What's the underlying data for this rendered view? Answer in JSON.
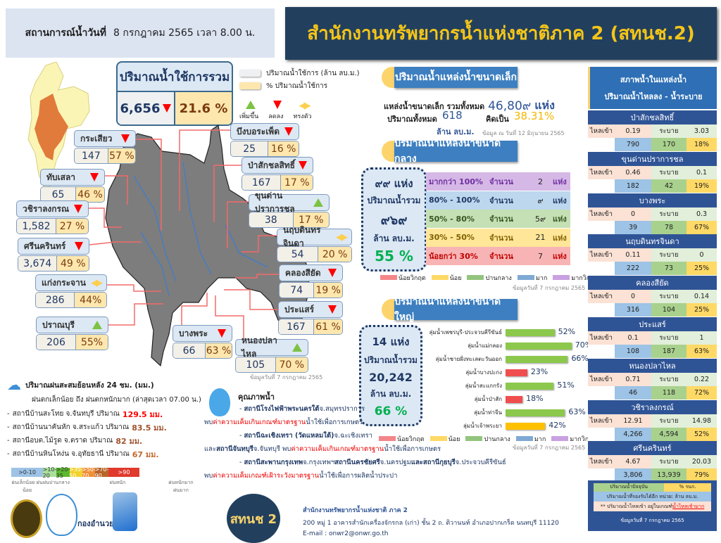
{
  "header": {
    "situation_label": "สถานการณ์น้ำวันที่",
    "situation_date": "8 กรกฎาคม 2565 เวลา 8.00 น.",
    "title": "สำนักงานทรัพยากรน้ำแห่งชาติภาค 2 (สทนช.2)"
  },
  "total": {
    "title": "ปริมาณน้ำใช้การรวม",
    "value": "6,656",
    "trend": "down",
    "percent": "21.6 %"
  },
  "legend": {
    "volume_label": "ปริมาณน้ำใช้การ (ล้าน ลบ.ม.)",
    "percent_label": "% ปริมาณน้ำใช้การ",
    "up": "เพิ่มขึ้น",
    "down": "ลดลง",
    "steady": "ทรงตัว"
  },
  "colors": {
    "volume": "#eef0f2",
    "percent": "#fde7ae",
    "up": "#7dc242",
    "down": "#ff0000",
    "steady": "#fccf4d",
    "title_bg": "#22405e",
    "title_text": "#f5c518"
  },
  "map_dams": [
    {
      "name": "กระเสียว",
      "value": "147",
      "percent": "57 %",
      "trend": "down"
    },
    {
      "name": "ทับเสลา",
      "value": "65",
      "percent": "46 %",
      "trend": "down"
    },
    {
      "name": "วชิราลงกรณ",
      "value": "1,582",
      "percent": "27 %",
      "trend": "down"
    },
    {
      "name": "ศรีนครินทร์",
      "value": "3,674",
      "percent": "49 %",
      "trend": "down"
    },
    {
      "name": "แก่งกระจาน",
      "value": "286",
      "percent": "44%",
      "trend": "steady"
    },
    {
      "name": "ปราณบุรี",
      "value": "206",
      "percent": "55%",
      "trend": "up"
    },
    {
      "name": "บึงบอระเพ็ด",
      "value": "25",
      "percent": "16 %",
      "trend": "down"
    },
    {
      "name": "ป่าสักชลสิทธิ์",
      "value": "167",
      "percent": "17 %",
      "trend": "down"
    },
    {
      "name": "ขุนด่านปราการชล",
      "value": "38",
      "percent": "17 %",
      "trend": "up"
    },
    {
      "name": "นฤบดินทรจินดา",
      "value": "54",
      "percent": "20 %",
      "trend": "steady"
    },
    {
      "name": "คลองสียัด",
      "value": "74",
      "percent": "19 %",
      "trend": "down"
    },
    {
      "name": "ประแสร์",
      "value": "167",
      "percent": "61 %",
      "trend": "down"
    },
    {
      "name": "บางพระ",
      "value": "66",
      "percent": "63 %",
      "trend": "down"
    },
    {
      "name": "หนองปลาไหล",
      "value": "105",
      "percent": "70 %",
      "trend": "up"
    }
  ],
  "map_note": "ข้อมูลวันที่ 7 กรกฎาคม 2565",
  "small": {
    "title": "ปริมาณน้ำแหล่งน้ำขนาดเล็ก",
    "count_label": "แหล่งน้ำขนาดเล็ก รวมทั้งหมด",
    "count": "46,80๙",
    "count_unit": "แห่ง",
    "volume_label": "ปริมาณทั้งหมด",
    "volume": "618",
    "volume_unit": "ล้าน ลบ.ม.",
    "pct_label": "คิดเป็น",
    "percent": "38.31%",
    "note": "ข้อมูล ณ วันที่ 12 มิถุนายน 2565"
  },
  "medium": {
    "title": "ปริมาณน้ำแหล่งน้ำขนาดกลาง",
    "count": "๙๙ แห่ง",
    "volume_label": "ปริมาณน้ำรวม",
    "volume": "๙๖๙",
    "unit": "ล้าน ลบ.ม.",
    "percent": "55 %",
    "rows": [
      {
        "range": "มากกว่า 100%",
        "label": "จำนวน",
        "count": "2",
        "unit": "แห่ง",
        "bg": "#d5b8e6",
        "color": "#7030a0"
      },
      {
        "range": "80% - 100%",
        "label": "จำนวน",
        "count": "๙",
        "unit": "แห่ง",
        "bg": "#bdd7ee",
        "color": "#1f3864"
      },
      {
        "range": "50% - 80%",
        "label": "จำนวน",
        "count": "5๙",
        "unit": "แห่ง",
        "bg": "#c5e0b4",
        "color": "#375623"
      },
      {
        "range": "30% - 50%",
        "label": "จำนวน",
        "count": "21",
        "unit": "แห่ง",
        "bg": "#ffe699",
        "color": "#806000"
      },
      {
        "range": "น้อยกว่า 30%",
        "label": "จำนวน",
        "count": "7",
        "unit": "แห่ง",
        "bg": "#f8b4b4",
        "color": "#c00000"
      }
    ],
    "note": "ข้อมูลวันที่ 7 กรกฎาคม 2565"
  },
  "status_legend": [
    {
      "label": "น้อยวิกฤต",
      "color": "#f4868a"
    },
    {
      "label": "น้อย",
      "color": "#ffd966"
    },
    {
      "label": "ปานกลาง",
      "color": "#93c47d"
    },
    {
      "label": "มาก",
      "color": "#7fa9d4"
    },
    {
      "label": "มากวิกฤต",
      "color": "#c9a0e0"
    }
  ],
  "large": {
    "title": "ปริมาณน้ำแหล่งน้ำขนาดใหญ่",
    "count": "14 แห่ง",
    "volume_label": "ปริมาณน้ำรวม",
    "volume": "20,242",
    "unit": "ล้าน ลบ.ม.",
    "percent": "66 %",
    "note": "ข้อมูลวันที่ 7 กรกฎาคม 2565"
  },
  "chart_data": {
    "type": "bar",
    "orientation": "horizontal",
    "categories": [
      "ลุ่มน้ำเพชรบุรี-ประจวบคีรีขันธ์",
      "ลุ่มน้ำแม่กลอง",
      "ลุ่มน้ำชายฝั่งทะเลตะวันออก",
      "ลุ่มน้ำบางปะกง",
      "ลุ่มน้ำสะแกกรัง",
      "ลุ่มน้ำป่าสัก",
      "ลุ่มน้ำท่าจีน",
      "ลุ่มน้ำเจ้าพระยา"
    ],
    "values": [
      52,
      70,
      66,
      23,
      51,
      18,
      63,
      42
    ],
    "value_labels": [
      "52%",
      "70%",
      "66%",
      "23%",
      "51%",
      "18%",
      "63%",
      "42%"
    ],
    "bar_colors": [
      "#8cc84b",
      "#8cc84b",
      "#8cc84b",
      "#f04e4e",
      "#8cc84b",
      "#f04e4e",
      "#8cc84b",
      "#ffc000"
    ],
    "xlim": [
      0,
      100
    ]
  },
  "right": {
    "title1": "สภาพน้ำในแหล่งน้ำ",
    "title2": "ปริมาณน้ำไหลลง - น้ำระบาย",
    "inflow_label": "ไหลเข้า",
    "release_label": "ระบาย",
    "dams": [
      {
        "name": "ป่าสักชลสิทธิ์",
        "inflow": "0.19",
        "release": "3.03",
        "current": "790",
        "capacity": "170",
        "percent": "18%"
      },
      {
        "name": "ขุนด่านปราการชล",
        "inflow": "0.46",
        "release": "0.1",
        "current": "182",
        "capacity": "42",
        "percent": "19%"
      },
      {
        "name": "บางพระ",
        "inflow": "0",
        "release": "0.3",
        "current": "39",
        "capacity": "78",
        "percent": "67%"
      },
      {
        "name": "นฤบดินทรจินดา",
        "inflow": "0.11",
        "release": "0",
        "current": "222",
        "capacity": "73",
        "percent": "25%"
      },
      {
        "name": "คลองสียัด",
        "inflow": "0",
        "release": "0.14",
        "current": "316",
        "capacity": "104",
        "percent": "25%"
      },
      {
        "name": "ประแสร์",
        "inflow": "0.1",
        "release": "1",
        "current": "108",
        "capacity": "187",
        "percent": "63%"
      },
      {
        "name": "หนองปลาไหล",
        "inflow": "0.71",
        "release": "0.22",
        "current": "46",
        "capacity": "118",
        "percent": "72%"
      },
      {
        "name": "วชิราลงกรณ์",
        "inflow": "12.91",
        "release": "14.98",
        "current": "4,266",
        "capacity": "4,594",
        "percent": "52%"
      },
      {
        "name": "ศรีนครินทร์",
        "inflow": "4.67",
        "release": "20.03",
        "current": "3,806",
        "capacity": "13,939",
        "percent": "79%"
      }
    ],
    "legend_current": "ปริมาณน้ำปัจจุบัน",
    "legend_pct": "% รนก.",
    "legend_capacity": "ปริมาณน้ำที่รองรับได้อีก  หน่วย: ล้าน ลบ.ม.",
    "legend_inflow": "** ปริมาณน้ำไหลเข้า อยู่ในเกณฑ์",
    "legend_inflow_link": "น้ำไหลเข้ามาก",
    "note": "ข้อมูลวันที่ 7 กรกฎาคม 2565"
  },
  "rain": {
    "title": "ปริมาณฝนสะสมย้อนหลัง 24 ชม. (มม.)",
    "subtitle": "ฝนตกเล็กน้อย ถึง ฝนตกหนักมาก (ล่าสุดเวลา  07.00 น.)",
    "stations": [
      {
        "text": "สถานีบ้านสะโทย จ.จันทบุรี ปริมาณ",
        "amount": "129.5 มม.",
        "color": "#ff0000"
      },
      {
        "text": "สถานีบ้านนาคันหัก จ.สระแก้ว ปริมาณ",
        "amount": "83.5 มม.",
        "color": "#a0522d"
      },
      {
        "text": "สถานีอบต.ไม้รูด จ.ตราด ปริมาณ",
        "amount": "82 มม.",
        "color": "#a0522d"
      },
      {
        "text": "สถานีบ้านหินโหง่น จ.อุทัยธานี ปริมาณ",
        "amount": "67 มม.",
        "color": "#c0692a"
      }
    ],
    "scale": [
      {
        "label": ">0-10",
        "color": "#9dc3e6"
      },
      {
        "label": ">10-20",
        "color": "#a9e09b"
      },
      {
        "label": ">20-35",
        "color": "#5bb82f"
      },
      {
        "label": ">35-50",
        "color": "#f2d22e"
      },
      {
        "label": ">50-70",
        "color": "#f0913a"
      },
      {
        "label": ">70-90",
        "color": "#b8652a"
      },
      {
        "label": ">90",
        "color": "#e03a2e"
      }
    ],
    "scale_groups": [
      "ฝนเล็กน้อย ฝนน้อย",
      "ฝนปานกลาง",
      "ฝนหนัก",
      "ฝนหนักมาก ฝนมาก"
    ]
  },
  "quality": {
    "title": "คุณภาพน้ำ",
    "l1a": "สถานีโรงไฟฟ้าพระนครใต้",
    "l1b": " จ.สมุทรปราการ",
    "l2a": "พบ",
    "l2b": "ค่าความเค็มเกินเกณฑ์มาตรฐาน",
    "l2c": "น้ำใช้เพื่อการเกษตร",
    "l3a": "สถานีฉะเชิงเทรา (วัดแหลมใต้)",
    "l3b": " จ.ฉะเชิงเทรา",
    "l4a": "และ ",
    "l4b": "สถานีจันทบุรี",
    "l4c": " จ.จันทบุรี พบ",
    "l4d": "ค่าความเค็มเกินเกณฑ์มาตรฐาน",
    "l4e": "น้ำใช้เพื่อการเกษตร",
    "l5a": "สถานีสะพานกรุงเทพ",
    "l5b": " จ.กรุงเทพฯ ",
    "l5c": "สถานีนครชัยศรี",
    "l5d": " จ.นครปฐม ",
    "l5e": "และสถานีกุยบุรี",
    "l5f": " จ.ประจวบคีรีขันธ์",
    "l6a": "พบ",
    "l6b": "ค่าความเค็มเกณฑ์เฝ้าระวังมาตรฐาน",
    "l6c": "น้ำใช้เพื่อการผลิตน้ำประปา"
  },
  "footer": {
    "logo3_text": "กองอำนวยการ",
    "logo3_sub": "แห่งชาติ",
    "badge": "สทนช 2",
    "org": "สำนักงานทรัพยากรน้ำแห่งชาติ ภาค 2",
    "address": "200  หมู่ 1 อาคารสำนักเครื่องจักรกล (เก่า) ชั้น 2 ถ. ติวานนท์ อำเภอปากเกร็ด นนทบุรี 11120",
    "email": "E-mail : onwr2@onwr.go.th"
  }
}
